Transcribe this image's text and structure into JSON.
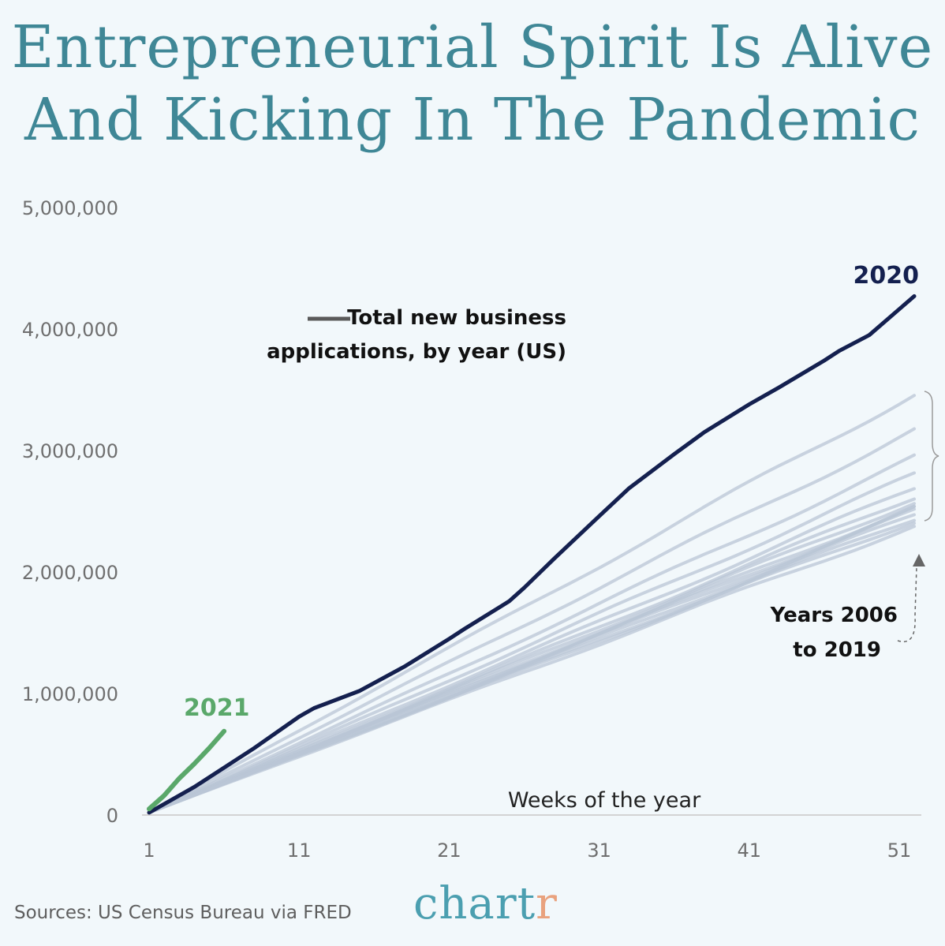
{
  "title_line1": "Entrepreneurial Spirit Is Alive",
  "title_line2": "And Kicking In The Pandemic",
  "legend_text_line1": "Total new business",
  "legend_text_line2": "applications, by year (US)",
  "annotation_2020": "2020",
  "annotation_2021": "2021",
  "annotation_years_line1": "Years 2006",
  "annotation_years_line2": "to 2019",
  "source": "Sources: US Census Bureau via FRED",
  "logo_main": "chart",
  "logo_accent": "r",
  "colors": {
    "title": "#3f8796",
    "line_2020": "#14204f",
    "line_2021": "#5aa86a",
    "lines_2006_2019": "#b9c6d6",
    "logo": "#4b9fb0",
    "logo_accent": "#e9a27e"
  },
  "chart_data": {
    "type": "line",
    "xlabel": "Weeks of the year",
    "ylabel": "",
    "xlim": [
      1,
      52
    ],
    "ylim": [
      0,
      5000000
    ],
    "x_ticks": [
      1,
      11,
      21,
      31,
      41,
      51
    ],
    "y_ticks": [
      0,
      1000000,
      2000000,
      3000000,
      4000000,
      5000000
    ],
    "y_tick_labels": [
      "0",
      "1,000,000",
      "2,000,000",
      "3,000,000",
      "4,000,000",
      "5,000,000"
    ],
    "x_tick_labels": [
      "1",
      "11",
      "21",
      "31",
      "41",
      "51"
    ],
    "grid": false,
    "series": [
      {
        "name": "2020",
        "x": [
          1,
          4,
          8,
          11,
          12,
          15,
          18,
          21,
          22,
          25,
          26,
          28,
          31,
          33,
          36,
          38,
          41,
          43,
          46,
          47,
          49,
          52
        ],
        "y": [
          20000,
          230000,
          550000,
          810000,
          880000,
          1020000,
          1220000,
          1450000,
          1530000,
          1760000,
          1870000,
          2110000,
          2460000,
          2690000,
          2970000,
          3150000,
          3380000,
          3520000,
          3740000,
          3820000,
          3950000,
          4270000
        ]
      },
      {
        "name": "2021",
        "x": [
          1,
          2,
          3,
          4,
          5,
          6
        ],
        "y": [
          50000,
          160000,
          300000,
          420000,
          550000,
          690000
        ]
      },
      {
        "name": "Years 2006 to 2019",
        "values_final": [
          3470000,
          3170000,
          2940000,
          2800000,
          2690000,
          2620000,
          2580000,
          2540000,
          2520000,
          2500000,
          2470000,
          2440000,
          2420000,
          2380000
        ]
      }
    ]
  }
}
